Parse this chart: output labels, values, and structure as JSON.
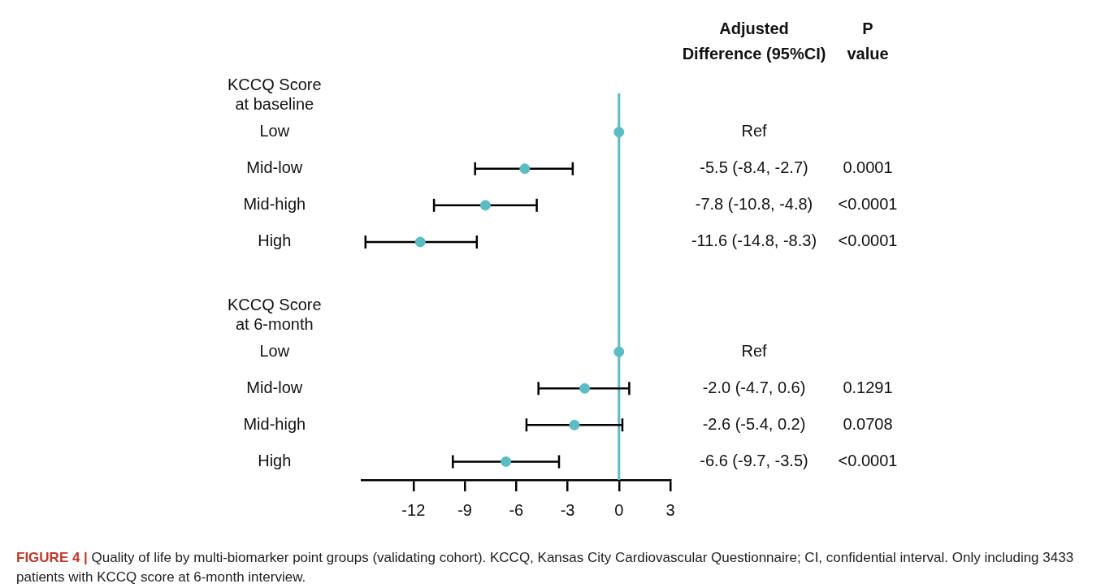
{
  "chart_data": {
    "type": "scatter",
    "categories": [
      "KCCQ Score at baseline",
      "Low",
      "Mid-low",
      "Mid-high",
      "High",
      null,
      "KCCQ Score at 6-month",
      "Low",
      "Mid-low",
      "Mid-high",
      "High"
    ],
    "values": [
      null,
      0,
      -5.5,
      -7.8,
      -11.6,
      null,
      null,
      0,
      -2.0,
      -2.6,
      -6.6
    ],
    "errors": [
      null,
      null,
      [
        -8.4,
        -2.7
      ],
      [
        -10.8,
        -4.8
      ],
      [
        -14.8,
        -8.3
      ],
      null,
      null,
      null,
      [
        -4.7,
        0.6
      ],
      [
        -5.4,
        0.2
      ],
      [
        -9.7,
        -3.5
      ]
    ],
    "color": "#5bbcc4",
    "marker": "circle",
    "orientation": "horizontal",
    "xlim": [
      -15,
      3
    ],
    "xticks": [
      -12,
      -9,
      -6,
      -3,
      0,
      3
    ],
    "ref_lines": [
      {
        "axis": "x",
        "value": 0,
        "color": "#5bbcc4"
      }
    ],
    "annotations": [
      "Adjusted Difference (95%CI)",
      "P value",
      "Ref",
      "-5.5 (-8.4, -2.7)",
      "0.0001",
      "-7.8 (-10.8, -4.8)",
      "<0.0001",
      "-11.6 (-14.8, -8.3)",
      "<0.0001",
      "Ref",
      "-2.0 (-4.7, 0.6)",
      "0.1291",
      "-2.6 (-5.4, 0.2)",
      "0.0708",
      "-6.6 (-9.7, -3.5)",
      "<0.0001",
      "FIGURE 4 | Quality of life by multi-biomarker point groups (validating cohort). KCCQ, Kansas City Cardiovascular Questionnaire; CI, confidential interval. Only including 3433 patients with KCCQ score at 6-month interview."
    ],
    "grid": false,
    "legend": false
  }
}
